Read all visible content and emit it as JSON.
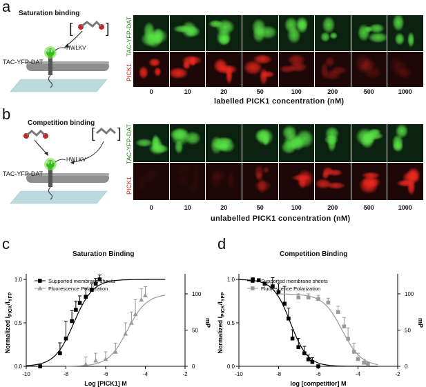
{
  "panel_a": {
    "letter": "a",
    "title": "Saturation binding",
    "schematic": {
      "yfp": "YFP",
      "tail": "HWLKV",
      "construct": "TAC-YFP-DAT"
    },
    "row_labels": [
      "TAC-YFP-DAT",
      "PICK1"
    ],
    "concentrations": [
      "0",
      "10",
      "20",
      "50",
      "100",
      "200",
      "500",
      "1000"
    ],
    "x_caption": "labelled PICK1 concentration (nM)",
    "red_intensity": [
      0.95,
      0.95,
      0.95,
      0.85,
      0.55,
      0.35,
      0.2,
      0.12
    ],
    "green_intensity": [
      0.8,
      0.85,
      0.9,
      0.8,
      0.85,
      0.85,
      0.85,
      0.9
    ]
  },
  "panel_b": {
    "letter": "b",
    "title": "Competition binding",
    "schematic": {
      "yfp": "YFP",
      "tail": "HWLKV",
      "construct": "TAC-YFP-DAT"
    },
    "row_labels": [
      "TAC-YFP-DAT",
      "PICK1"
    ],
    "concentrations": [
      "0",
      "10",
      "20",
      "50",
      "100",
      "200",
      "500",
      "1000"
    ],
    "x_caption": "unlabelled PICK1 concentration (nM)",
    "red_intensity": [
      0.05,
      0.05,
      0.1,
      0.4,
      0.75,
      0.8,
      0.9,
      0.95
    ],
    "green_intensity": [
      0.8,
      0.8,
      0.8,
      0.85,
      0.85,
      0.85,
      0.9,
      0.9
    ]
  },
  "panel_c": {
    "letter": "c",
    "title": "Saturation Binding",
    "ylabel_main": "Normalized I",
    "ylabel_sub": "PICK",
    "ylabel_tail": "/I",
    "ylabel_sub2": "YFP",
    "y2label": "mP",
    "xlabel": "Log [PICK1] M",
    "legend": [
      "Supported membrane sheets",
      "Fluorescence Polarization"
    ]
  },
  "panel_d": {
    "letter": "d",
    "title": "Competition Binding",
    "ylabel_main": "Normalized I",
    "ylabel_sub": "PICK",
    "ylabel_tail": "/I",
    "ylabel_sub2": "YFP",
    "y2label": "mP",
    "xlabel": "log [competitior] M",
    "legend": [
      "Supported membrane sheets",
      "Fluorescence Polarization"
    ]
  },
  "chart_data": [
    {
      "type": "scatter",
      "title": "Saturation Binding",
      "xlabel": "Log [PICK1] M",
      "ylabel": "Normalized IPICK/IYFP",
      "y2label": "mP",
      "xlim": [
        -10,
        -2
      ],
      "ylim": [
        0,
        1.0
      ],
      "y2lim": [
        0,
        120
      ],
      "xticks": [
        "-10",
        "-8",
        "-6",
        "-4",
        "-2"
      ],
      "yticks": [
        "0.0",
        "0.5",
        "1.0"
      ],
      "y2ticks": [
        "0",
        "50",
        "100"
      ],
      "series": [
        {
          "name": "Supported membrane sheets",
          "axis": "left",
          "color": "#000000",
          "x": [
            -9.3,
            -8.3,
            -8.0,
            -7.7,
            -7.5,
            -7.3,
            -7.0,
            -6.7,
            -6.5,
            -6.3
          ],
          "y": [
            0.0,
            0.15,
            0.32,
            0.52,
            0.65,
            0.73,
            0.8,
            0.88,
            0.95,
            1.0
          ],
          "err": [
            0.0,
            0.12,
            0.2,
            0.12,
            0.1,
            0.08,
            0.1,
            0.07,
            0.06,
            0.05
          ],
          "fit": {
            "ec50": -7.6,
            "hill": 0.9
          }
        },
        {
          "name": "Fluorescence Polarization",
          "axis": "right",
          "color": "#9a9a9a",
          "x": [
            -7.0,
            -6.5,
            -6.0,
            -5.5,
            -5.0,
            -4.7,
            -4.5,
            -4.2,
            -4.0
          ],
          "y": [
            3,
            8,
            10,
            20,
            45,
            60,
            72,
            92,
            98
          ],
          "err": [
            10,
            10,
            10,
            12,
            15,
            15,
            20,
            15,
            12
          ],
          "fit": {
            "ec50": -4.9,
            "hill": 0.9
          }
        }
      ]
    },
    {
      "type": "scatter",
      "title": "Competition Binding",
      "xlabel": "log [competitior] M",
      "ylabel": "Normalized IPICK/IYFP",
      "y2label": "mP",
      "xlim": [
        -10,
        -2
      ],
      "ylim": [
        0,
        1.0
      ],
      "y2lim": [
        0,
        120
      ],
      "xticks": [
        "-10",
        "-8",
        "-6",
        "-4",
        "-2"
      ],
      "yticks": [
        "0.0",
        "0.5",
        "1.0"
      ],
      "y2ticks": [
        "0",
        "50",
        "100"
      ],
      "series": [
        {
          "name": "Supported membrane sheets",
          "axis": "left",
          "color": "#000000",
          "x": [
            -9.3,
            -9.0,
            -8.7,
            -8.3,
            -8.0,
            -7.7,
            -7.5,
            -7.3,
            -7.0,
            -6.7,
            -6.5,
            -6.3,
            -6.0
          ],
          "y": [
            1.0,
            0.99,
            0.95,
            0.92,
            0.85,
            0.72,
            0.55,
            0.32,
            0.22,
            0.15,
            0.08,
            0.05,
            0.0
          ],
          "err": [
            0.0,
            0.0,
            0.0,
            0.1,
            0.1,
            0.2,
            0.12,
            0.1,
            0.1,
            0.08,
            0.05,
            0.05,
            0.0
          ],
          "fit": {
            "ec50": -7.4,
            "hill": -1.0
          }
        },
        {
          "name": "Fluorescence Polarization",
          "axis": "right",
          "color": "#9a9a9a",
          "x": [
            -7.0,
            -6.5,
            -6.0,
            -5.5,
            -5.0,
            -4.7,
            -4.5,
            -4.2,
            -4.0,
            -3.7,
            -3.5
          ],
          "y": [
            95,
            95,
            93,
            88,
            75,
            55,
            38,
            20,
            10,
            5,
            3
          ],
          "err": [
            5,
            5,
            5,
            6,
            8,
            12,
            15,
            12,
            8,
            5,
            3
          ],
          "fit": {
            "ec50": -4.8,
            "hill": -0.9
          }
        }
      ]
    }
  ]
}
